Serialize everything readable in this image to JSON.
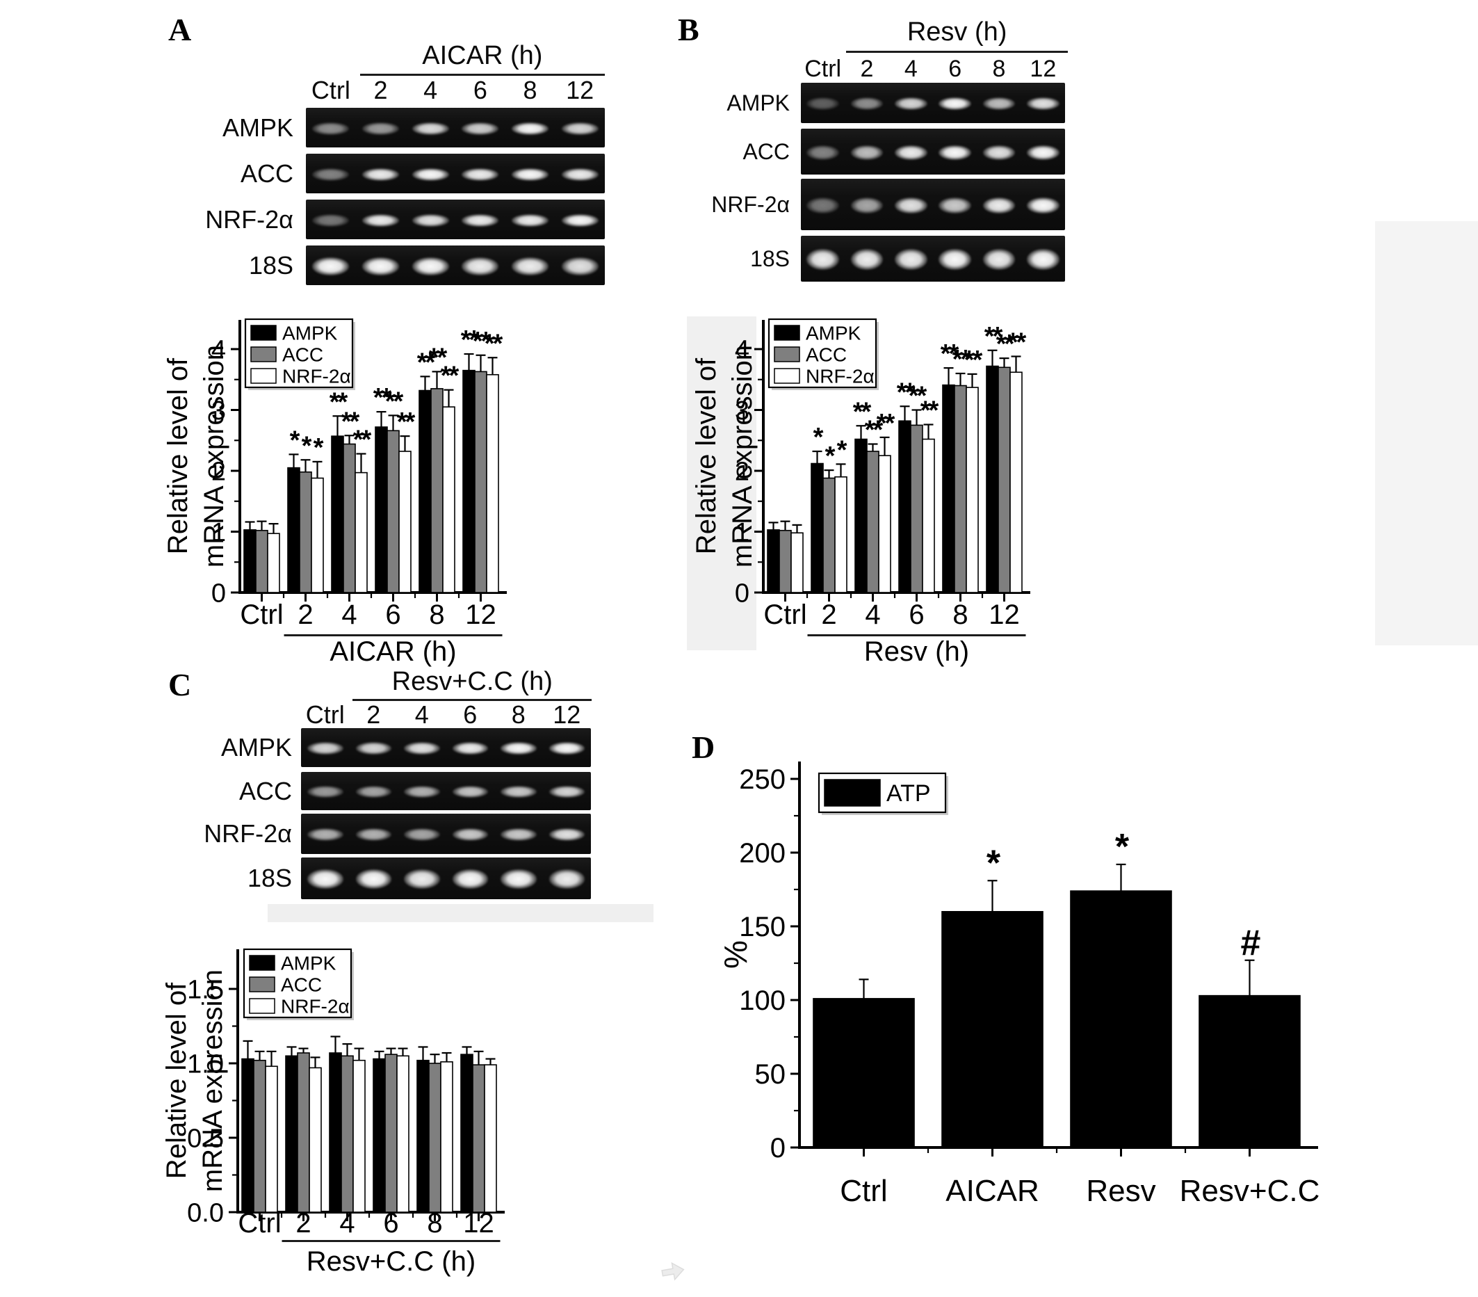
{
  "figure_labels": {
    "A": "A",
    "B": "B",
    "C": "C",
    "D": "D"
  },
  "gel_panels": [
    {
      "id": "A",
      "treatment": "AICAR (h)",
      "lanes": [
        "Ctrl",
        "2",
        "4",
        "6",
        "8",
        "12"
      ],
      "rows": [
        {
          "label": "AMPK",
          "bands": [
            0.55,
            0.6,
            0.88,
            0.82,
            1.0,
            0.85
          ]
        },
        {
          "label": "ACC",
          "bands": [
            0.5,
            0.95,
            1.0,
            0.95,
            1.0,
            0.95
          ]
        },
        {
          "label": "NRF-2α",
          "bands": [
            0.45,
            0.95,
            0.9,
            0.95,
            0.95,
            1.0
          ]
        },
        {
          "label": "18S",
          "bands": [
            1.0,
            1.0,
            1.0,
            0.95,
            0.95,
            0.9
          ]
        }
      ]
    },
    {
      "id": "B",
      "treatment": "Resv (h)",
      "lanes": [
        "Ctrl",
        "2",
        "4",
        "6",
        "8",
        "12"
      ],
      "rows": [
        {
          "label": "AMPK",
          "bands": [
            0.35,
            0.55,
            0.85,
            1.0,
            0.75,
            0.9
          ]
        },
        {
          "label": "ACC",
          "bands": [
            0.5,
            0.75,
            0.95,
            1.0,
            0.9,
            1.0
          ]
        },
        {
          "label": "NRF-2α",
          "bands": [
            0.45,
            0.65,
            0.9,
            0.8,
            0.95,
            1.0
          ]
        },
        {
          "label": "18S",
          "bands": [
            0.95,
            0.95,
            0.95,
            1.0,
            0.95,
            1.0
          ]
        }
      ]
    },
    {
      "id": "C",
      "treatment": "Resv+C.C (h)",
      "lanes": [
        "Ctrl",
        "2",
        "4",
        "6",
        "8",
        "12"
      ],
      "rows": [
        {
          "label": "AMPK",
          "bands": [
            0.85,
            0.85,
            0.9,
            0.95,
            1.0,
            1.0
          ]
        },
        {
          "label": "ACC",
          "bands": [
            0.6,
            0.65,
            0.7,
            0.78,
            0.8,
            0.85
          ]
        },
        {
          "label": "NRF-2α",
          "bands": [
            0.7,
            0.7,
            0.65,
            0.8,
            0.8,
            0.9
          ]
        },
        {
          "label": "18S",
          "bands": [
            1.0,
            1.0,
            0.95,
            1.0,
            1.0,
            0.95
          ]
        }
      ]
    }
  ],
  "chart_data": [
    {
      "panel": "A",
      "type": "bar",
      "title": "",
      "categories": [
        "Ctrl",
        "2",
        "4",
        "6",
        "8",
        "12"
      ],
      "xlabel": "AICAR (h)",
      "ylabel_lines": [
        "Relative level of",
        "mRNA expression"
      ],
      "ylim": [
        0,
        4.4
      ],
      "yticks": [
        "0",
        "1",
        "2",
        "3",
        "4"
      ],
      "grid": false,
      "legend": [
        "AMPK",
        "ACC",
        "NRF-2α"
      ],
      "legend_position": "top-left",
      "series": [
        {
          "name": "AMPK",
          "color": "#000000",
          "values": [
            1.03,
            2.05,
            2.57,
            2.72,
            3.32,
            3.65
          ],
          "errors": [
            0.13,
            0.22,
            0.33,
            0.25,
            0.23,
            0.27
          ],
          "sig": [
            "",
            "*",
            "**",
            "**",
            "**",
            "**"
          ]
        },
        {
          "name": "ACC",
          "color": "#7f7f7f",
          "values": [
            1.02,
            1.98,
            2.44,
            2.66,
            3.35,
            3.63
          ],
          "errors": [
            0.15,
            0.2,
            0.14,
            0.25,
            0.28,
            0.27
          ],
          "sig": [
            "",
            "*",
            "**",
            "**",
            "**",
            "**"
          ]
        },
        {
          "name": "NRF-2α",
          "color": "#ffffff",
          "values": [
            0.97,
            1.88,
            1.97,
            2.32,
            3.05,
            3.58
          ],
          "errors": [
            0.16,
            0.27,
            0.31,
            0.25,
            0.28,
            0.28
          ],
          "sig": [
            "",
            "*",
            "**",
            "**",
            "**",
            "**"
          ]
        }
      ]
    },
    {
      "panel": "B",
      "type": "bar",
      "title": "",
      "categories": [
        "Ctrl",
        "2",
        "4",
        "6",
        "8",
        "12"
      ],
      "xlabel": "Resv (h)",
      "ylabel_lines": [
        "Relative level of",
        "mRNA expression"
      ],
      "ylim": [
        0,
        4.4
      ],
      "yticks": [
        "0",
        "1",
        "2",
        "3",
        "4"
      ],
      "grid": false,
      "legend": [
        "AMPK",
        "ACC",
        "NRF-2α"
      ],
      "legend_position": "top-left",
      "series": [
        {
          "name": "AMPK",
          "color": "#000000",
          "values": [
            1.03,
            2.12,
            2.52,
            2.82,
            3.41,
            3.72
          ],
          "errors": [
            0.12,
            0.2,
            0.22,
            0.24,
            0.28,
            0.26
          ],
          "sig": [
            "",
            "*",
            "**",
            "**",
            "**",
            "**"
          ]
        },
        {
          "name": "ACC",
          "color": "#7f7f7f",
          "values": [
            1.02,
            1.88,
            2.32,
            2.75,
            3.4,
            3.7
          ],
          "errors": [
            0.15,
            0.13,
            0.12,
            0.25,
            0.2,
            0.15
          ],
          "sig": [
            "",
            "*",
            "**",
            "**",
            "**",
            "**"
          ]
        },
        {
          "name": "NRF-2α",
          "color": "#ffffff",
          "values": [
            0.98,
            1.9,
            2.25,
            2.52,
            3.37,
            3.62
          ],
          "errors": [
            0.13,
            0.21,
            0.3,
            0.24,
            0.22,
            0.26
          ],
          "sig": [
            "",
            "*",
            "**",
            "**",
            "**",
            "**"
          ]
        }
      ]
    },
    {
      "panel": "C",
      "type": "bar",
      "title": "",
      "categories": [
        "Ctrl",
        "2",
        "4",
        "6",
        "8",
        "12"
      ],
      "xlabel": "Resv+C.C (h)",
      "ylabel_lines": [
        "Relative level of",
        "mRNA expression"
      ],
      "ylim": [
        0,
        1.75
      ],
      "yticks": [
        "0.0",
        "0.5",
        "1.0",
        "1.5"
      ],
      "grid": false,
      "legend": [
        "AMPK",
        "ACC",
        "NRF-2α"
      ],
      "legend_position": "top-left",
      "series": [
        {
          "name": "AMPK",
          "color": "#000000",
          "values": [
            1.03,
            1.05,
            1.07,
            1.03,
            1.02,
            1.06
          ],
          "errors": [
            0.12,
            0.06,
            0.11,
            0.05,
            0.09,
            0.05
          ],
          "sig": [
            "",
            "",
            "",
            "",
            "",
            ""
          ]
        },
        {
          "name": "ACC",
          "color": "#7f7f7f",
          "values": [
            1.02,
            1.07,
            1.05,
            1.06,
            1.0,
            0.99
          ],
          "errors": [
            0.06,
            0.03,
            0.08,
            0.04,
            0.06,
            0.09
          ],
          "sig": [
            "",
            "",
            "",
            "",
            "",
            ""
          ]
        },
        {
          "name": "NRF-2α",
          "color": "#ffffff",
          "values": [
            0.98,
            0.97,
            1.02,
            1.05,
            1.01,
            0.99
          ],
          "errors": [
            0.1,
            0.07,
            0.08,
            0.05,
            0.06,
            0.04
          ],
          "sig": [
            "",
            "",
            "",
            "",
            "",
            ""
          ]
        }
      ]
    },
    {
      "panel": "D",
      "type": "bar",
      "title": "",
      "categories": [
        "Ctrl",
        "AICAR",
        "Resv",
        "Resv+C.C"
      ],
      "xlabel": "",
      "ylabel_lines": [
        "%"
      ],
      "ylim": [
        0,
        260
      ],
      "yticks": [
        "0",
        "50",
        "100",
        "150",
        "200",
        "250"
      ],
      "grid": false,
      "legend": [
        "ATP"
      ],
      "legend_position": "top-left",
      "series": [
        {
          "name": "ATP",
          "color": "#000000",
          "values": [
            101,
            160,
            174,
            103
          ],
          "errors": [
            13,
            21,
            18,
            24
          ],
          "sig": [
            "",
            "*",
            "*",
            "#"
          ]
        }
      ]
    }
  ],
  "watermark": {
    "name": "cursor-arrow-icon"
  }
}
